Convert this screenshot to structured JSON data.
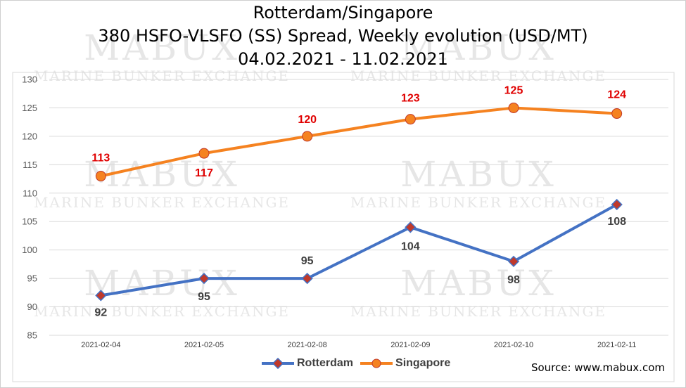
{
  "title": {
    "line1": "Rotterdam/Singapore",
    "line2": "380 HSFO-VLSFO (SS) Spread, Weekly evolution (USD/MT)",
    "line3": "04.02.2021 - 11.02.2021"
  },
  "watermark": {
    "brand": "MABUX",
    "tagline": "MARINE BUNKER EXCHANGE"
  },
  "source": "Source: www.mabux.com",
  "colors": {
    "rotterdam": "#4472C4",
    "rotterdam_marker": "#C0392B",
    "singapore": "#F58220",
    "singapore_label": "#E00000",
    "rotterdam_label": "#404040"
  },
  "chart_data": {
    "type": "line",
    "categories": [
      "2021-02-04",
      "2021-02-05",
      "2021-02-08",
      "2021-02-09",
      "2021-02-10",
      "2021-02-11"
    ],
    "series": [
      {
        "name": "Rotterdam",
        "values": [
          92,
          95,
          95,
          104,
          98,
          108
        ]
      },
      {
        "name": "Singapore",
        "values": [
          113,
          117,
          120,
          123,
          125,
          124
        ]
      }
    ],
    "ylim": [
      85,
      130
    ],
    "yticks": [
      85,
      90,
      95,
      100,
      105,
      110,
      115,
      120,
      125,
      130
    ],
    "grid": true,
    "legend_position": "bottom"
  }
}
